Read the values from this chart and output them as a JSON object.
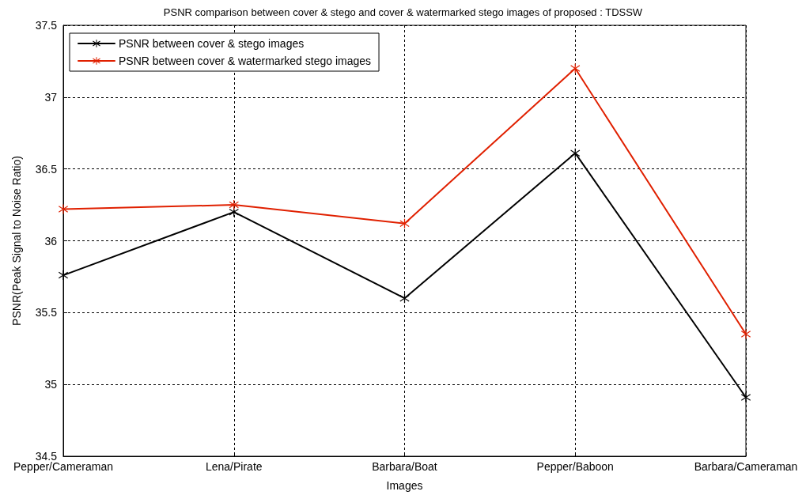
{
  "chart_data": {
    "type": "line",
    "title": "PSNR comparison between cover & stego and cover & watermarked stego images of proposed : TDSSW",
    "xlabel": "Images",
    "ylabel": "PSNR(Peak Signal to Noise Ratio)",
    "categories": [
      "Pepper/Cameraman",
      "Lena/Pirate",
      "Barbara/Boat",
      "Pepper/Baboon",
      "Barbara/Cameraman"
    ],
    "series": [
      {
        "name": "PSNR between cover & stego images",
        "color": "#000000",
        "values": [
          35.76,
          36.2,
          35.6,
          36.61,
          34.91
        ]
      },
      {
        "name": "PSNR between cover & watermarked stego images",
        "color": "#e02000",
        "values": [
          36.22,
          36.25,
          36.12,
          37.2,
          35.35
        ]
      }
    ],
    "ylim": [
      34.5,
      37.5
    ],
    "yticks": [
      34.5,
      35,
      35.5,
      36,
      36.5,
      37,
      37.5
    ],
    "grid": true,
    "legend": "top left",
    "marker": "cross",
    "line_style": "solid"
  }
}
